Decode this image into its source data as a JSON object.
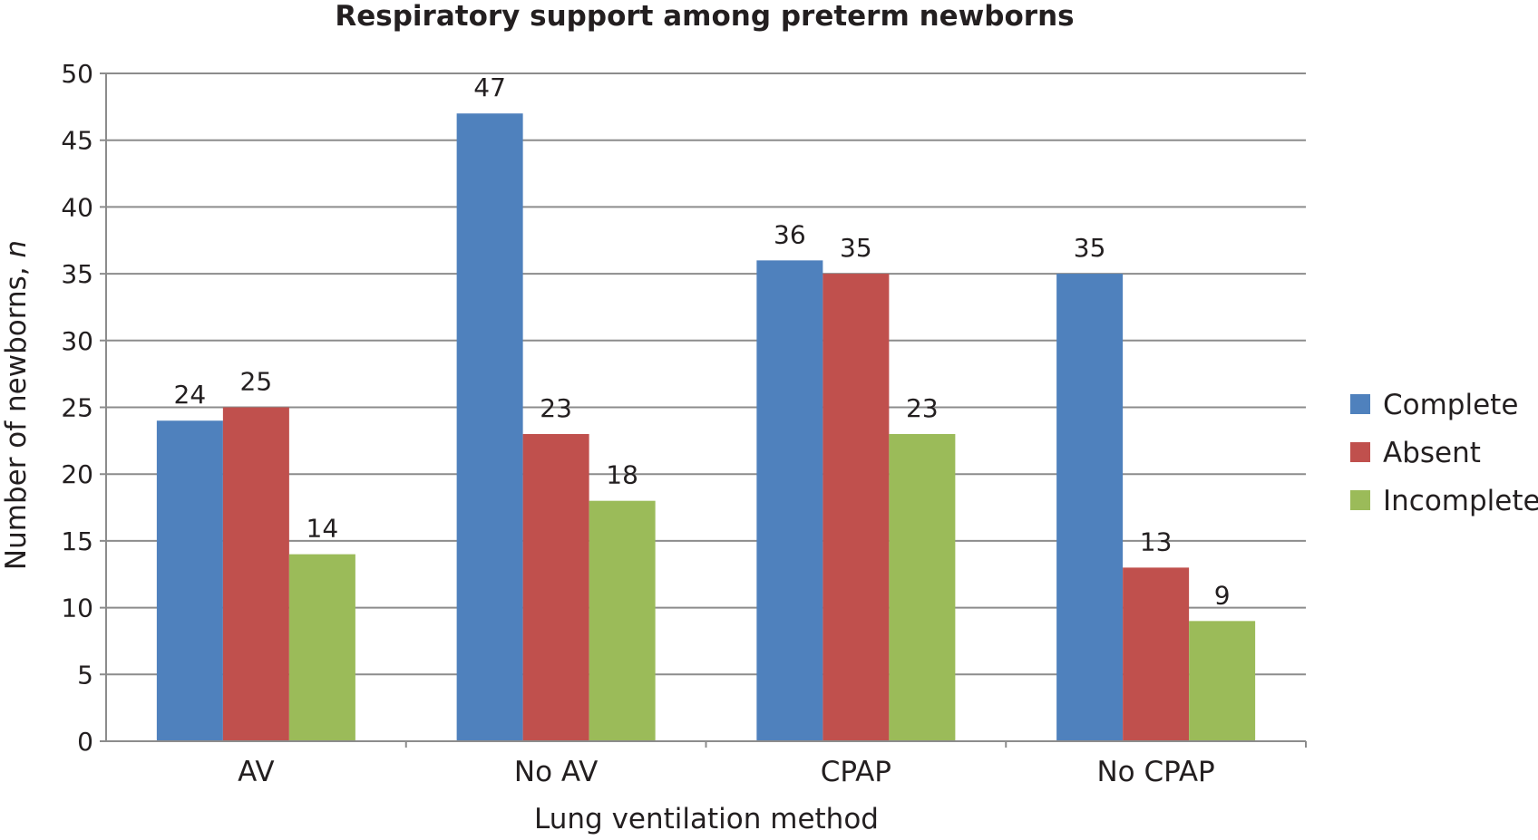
{
  "chart_data": {
    "type": "bar",
    "title": "Respiratory support among preterm newborns",
    "xlabel": "Lung ventilation method",
    "ylabel": "Number of newborns, ",
    "ylabel_italic": "n",
    "categories": [
      "AV",
      "No AV",
      "CPAP",
      "No CPAP"
    ],
    "series": [
      {
        "name": "Complete",
        "color": "#4f81bd",
        "values": [
          24,
          47,
          36,
          35
        ]
      },
      {
        "name": "Absent",
        "color": "#c0504d",
        "values": [
          25,
          23,
          35,
          13
        ]
      },
      {
        "name": "Incomplete",
        "color": "#9bbb59",
        "values": [
          14,
          18,
          23,
          9
        ]
      }
    ],
    "ylim": [
      0,
      50
    ],
    "yticks": [
      0,
      5,
      10,
      15,
      20,
      25,
      30,
      35,
      40,
      45,
      50
    ],
    "grid": true,
    "legend_position": "right",
    "data_labels": true
  }
}
